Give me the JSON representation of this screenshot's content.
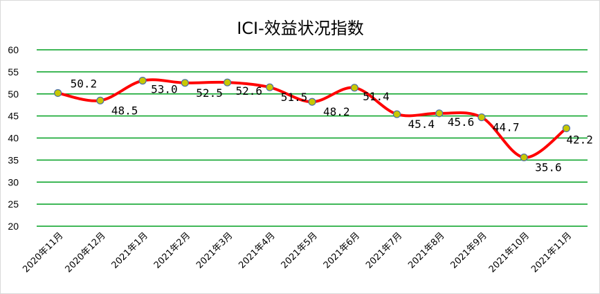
{
  "chart_data": {
    "type": "line",
    "title": "ICI-效益状况指数",
    "xlabel": "",
    "ylabel": "",
    "ylim": [
      20,
      60
    ],
    "yticks": [
      20,
      25,
      30,
      35,
      40,
      45,
      50,
      55,
      60
    ],
    "grid": true,
    "smooth": true,
    "categories": [
      "2020年11月",
      "2020年12月",
      "2021年1月",
      "2021年2月",
      "2021年3月",
      "2021年4月",
      "2021年5月",
      "2021年6月",
      "2021年7月",
      "2021年8月",
      "2021年9月",
      "2021年10月",
      "2021年11月"
    ],
    "series": [
      {
        "values": [
          50.2,
          48.5,
          53.0,
          52.5,
          52.6,
          51.5,
          48.2,
          51.4,
          45.4,
          45.6,
          44.7,
          35.6,
          42.2
        ],
        "labels": [
          "50.2",
          "48.5",
          "53.0",
          "52.5",
          "52.6",
          "51.5",
          "48.2",
          "51.4",
          "45.4",
          "45.6",
          "44.7",
          "35.6",
          "42.2"
        ],
        "color": "#ff0000",
        "marker_fill": "#c8c800",
        "marker_stroke": "#4a6fa5"
      }
    ],
    "grid_color": "#00a020"
  }
}
